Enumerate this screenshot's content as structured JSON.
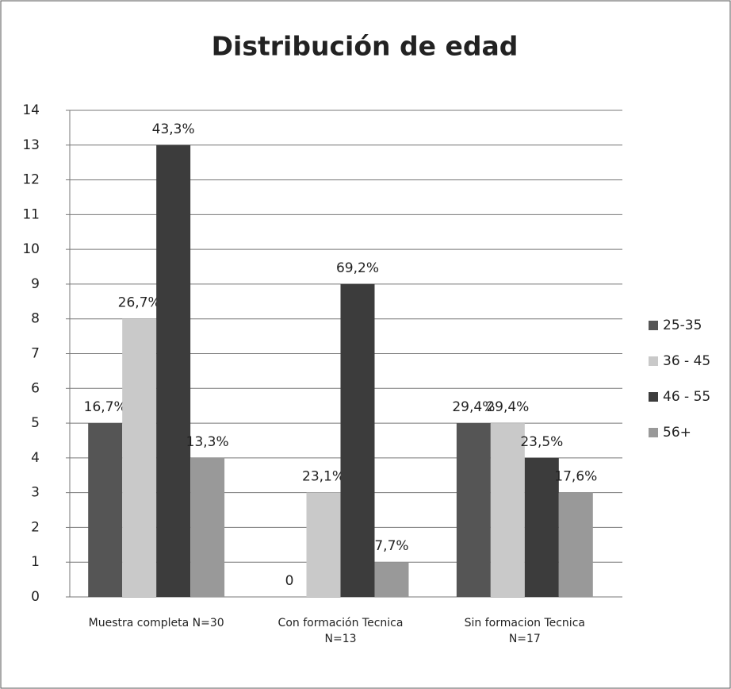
{
  "chart_data": {
    "type": "bar",
    "title": "Distribución de edad",
    "categories": [
      "Muestra completa  N=30",
      "Con formación Tecnica\nN=13",
      "Sin formacion Tecnica\nN=17"
    ],
    "series": [
      {
        "name": "25-35",
        "color": "#555555",
        "values": [
          5,
          0,
          5
        ],
        "value_labels": [
          "16,7%",
          "0",
          "29,4%"
        ]
      },
      {
        "name": "36 - 45",
        "color": "#c9c9c9",
        "values": [
          8,
          3,
          5
        ],
        "value_labels": [
          "26,7%",
          "23,1%",
          "29,4%"
        ]
      },
      {
        "name": "46 - 55",
        "color": "#3c3c3c",
        "values": [
          13,
          9,
          4
        ],
        "value_labels": [
          "43,3%",
          "69,2%",
          "23,5%"
        ]
      },
      {
        "name": "56+",
        "color": "#999999",
        "values": [
          4,
          1,
          3
        ],
        "value_labels": [
          "13,3%",
          "7,7%",
          "17,6%"
        ]
      }
    ],
    "ylim": [
      0,
      14
    ],
    "yticks": [
      0,
      1,
      2,
      3,
      4,
      5,
      6,
      7,
      8,
      9,
      10,
      11,
      12,
      13,
      14
    ],
    "grid": true,
    "legend": "right"
  }
}
